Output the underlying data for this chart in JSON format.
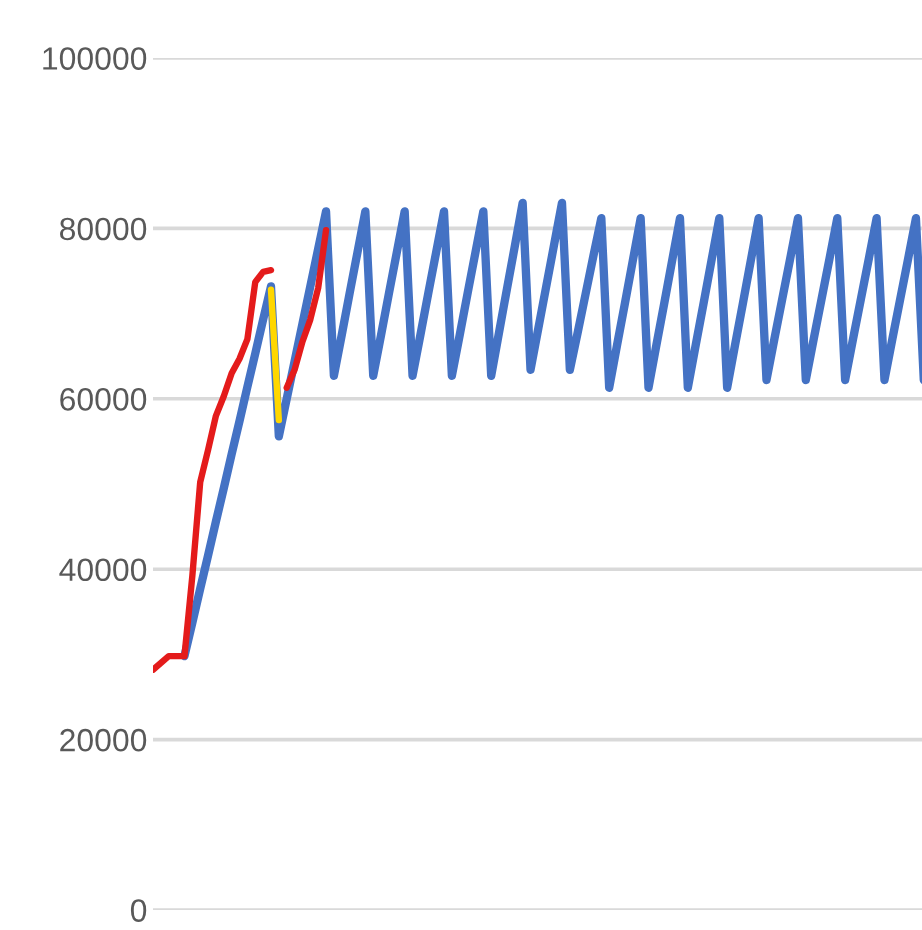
{
  "chart_data": {
    "type": "line",
    "ylim": [
      0,
      100000
    ],
    "yticks": [
      0,
      20000,
      40000,
      60000,
      80000,
      100000
    ],
    "grid": "y",
    "marker": "none",
    "line_style": "solid",
    "categories": [
      null,
      null,
      null,
      null,
      null,
      null,
      null,
      null,
      null,
      null,
      null,
      null,
      null,
      null,
      null,
      null,
      null,
      null,
      null,
      null,
      null,
      null,
      null,
      null,
      null,
      null,
      null,
      null,
      null,
      null,
      null,
      null,
      null,
      null,
      null,
      null,
      null,
      null,
      null,
      null,
      null,
      null,
      null,
      null,
      null,
      null,
      null,
      null,
      null,
      null,
      null,
      null,
      null,
      null,
      null,
      null,
      null,
      null,
      null,
      null,
      null,
      null,
      null,
      null,
      null,
      null,
      null,
      null,
      null,
      null,
      null,
      null,
      null,
      null,
      null,
      null,
      null,
      null,
      null,
      null,
      null,
      null,
      null,
      null,
      null,
      null,
      null,
      null,
      null,
      null,
      null,
      null,
      null,
      null,
      null,
      null,
      null,
      null,
      null
    ],
    "series": [
      {
        "color": "#4472c4",
        "values": [
          null,
          null,
          null,
          null,
          29800,
          33700,
          37700,
          41600,
          45600,
          49500,
          53500,
          57400,
          61400,
          65300,
          69300,
          73200,
          55600,
          60000,
          64400,
          68800,
          73200,
          77600,
          82000,
          62700,
          67500,
          72400,
          77200,
          82000,
          62700,
          67500,
          72400,
          77200,
          82000,
          62700,
          67500,
          72400,
          77200,
          82000,
          62700,
          67500,
          72400,
          77200,
          82000,
          62700,
          67800,
          72900,
          77900,
          83000,
          63400,
          68300,
          73200,
          78100,
          83000,
          63400,
          67800,
          72300,
          76800,
          81200,
          61300,
          66300,
          71200,
          76200,
          81200,
          61300,
          66300,
          71200,
          76200,
          81200,
          61300,
          66300,
          71200,
          76200,
          81200,
          61300,
          66300,
          71200,
          76200,
          81200,
          62200,
          67000,
          71700,
          76400,
          81200,
          62200,
          67000,
          71700,
          76400,
          81200,
          62200,
          67000,
          71700,
          76400,
          81200,
          62200,
          67000,
          71700,
          76400,
          81200,
          62200
        ]
      },
      {
        "color": "#e41b1b",
        "values": [
          28200,
          null,
          29800,
          null,
          29800,
          39200,
          50200,
          54000,
          58000,
          60300,
          63000,
          64700,
          67000,
          73700,
          74900,
          75100,
          null,
          61300,
          63400,
          66700,
          69300,
          73000,
          79800,
          null,
          null,
          null,
          null,
          null,
          null,
          null,
          null,
          null,
          null,
          null,
          null,
          null,
          null,
          null,
          null,
          null,
          null,
          null,
          null,
          null,
          null,
          null,
          null,
          null,
          null,
          null,
          null,
          null,
          null,
          null,
          null,
          null,
          null,
          null,
          null,
          null,
          null,
          null,
          null,
          null,
          null,
          null,
          null,
          null,
          null,
          null,
          null,
          null,
          null,
          null,
          null,
          null,
          null,
          null,
          null,
          null,
          null,
          null,
          null,
          null,
          null,
          null,
          null,
          null,
          null,
          null,
          null,
          null,
          null,
          null,
          null,
          null,
          null,
          null,
          null
        ]
      },
      {
        "color": "#ffd700",
        "values": [
          null,
          null,
          null,
          null,
          null,
          null,
          null,
          null,
          null,
          null,
          null,
          null,
          null,
          null,
          null,
          72800,
          57500,
          null,
          null,
          null,
          null,
          null,
          null,
          null,
          null,
          null,
          null,
          null,
          null,
          null,
          null,
          null,
          null,
          null,
          null,
          null,
          null,
          null,
          null,
          null,
          null,
          null,
          null,
          null,
          null,
          null,
          null,
          null,
          null,
          null,
          null,
          null,
          null,
          null,
          null,
          null,
          null,
          null,
          null,
          null,
          null,
          null,
          null,
          null,
          null,
          null,
          null,
          null,
          null,
          null,
          null,
          null,
          null,
          null,
          null,
          null,
          null,
          null,
          null,
          null,
          null,
          null,
          null,
          null,
          null,
          null,
          null,
          null,
          null,
          null,
          null,
          null,
          null,
          null,
          null,
          null,
          null,
          null,
          null
        ]
      }
    ]
  }
}
